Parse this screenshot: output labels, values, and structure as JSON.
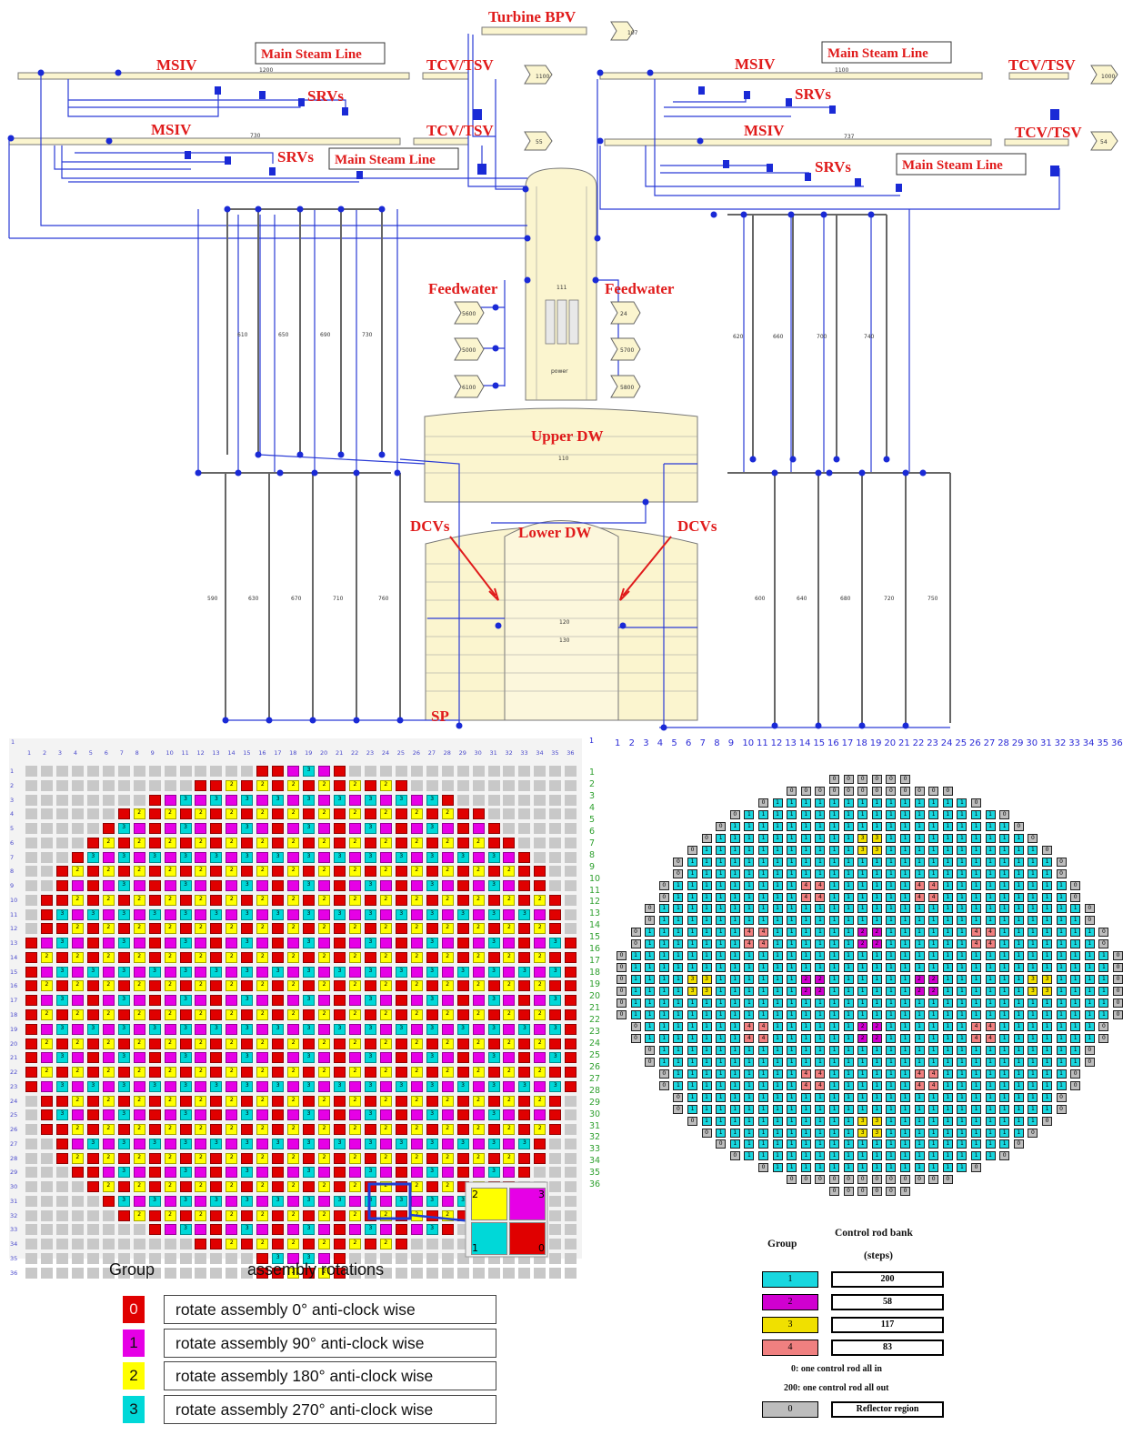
{
  "labels": {
    "turbine_bpv": "Turbine BPV",
    "msiv": "MSIV",
    "main_steam_line": "Main Steam Line",
    "tcv_tsv": "TCV/TSV",
    "srvs": "SRVs",
    "feedwater": "Feedwater",
    "upper_dw": "Upper DW",
    "lower_dw": "Lower DW",
    "dcvs": "DCVs",
    "sp": "SP"
  },
  "component_numbers": {
    "bpv_out": "107",
    "tcv_out_1": "1100",
    "tcv_out_2": "55",
    "tcv_out_3": "1000",
    "tcv_out_4": "54",
    "msl_1": "1200",
    "msl_2": "1100",
    "msl_3": "730",
    "msl_4": "737",
    "vessel": "111",
    "power": "power",
    "upper_dw": "110",
    "lower_dw_1": "120",
    "lower_dw_2": "130",
    "fw_left": [
      "5600",
      "5000",
      "6100"
    ],
    "fw_right": [
      "24",
      "5700",
      "5800"
    ],
    "downcomers_left_upper": [
      "610",
      "650",
      "690",
      "730"
    ],
    "downcomers_right_upper": [
      "620",
      "660",
      "700",
      "740"
    ],
    "downcomers_left_lower": [
      "590",
      "630",
      "670",
      "710",
      "760"
    ],
    "downcomers_right_lower": [
      "600",
      "640",
      "680",
      "720",
      "750"
    ]
  },
  "rotation_map": {
    "size": 36,
    "corner": "1",
    "col_numbers": [
      "1",
      "2",
      "3",
      "4",
      "5",
      "6",
      "7",
      "8",
      "9",
      "10",
      "11",
      "12",
      "13",
      "14",
      "15",
      "16",
      "17",
      "18",
      "19",
      "20",
      "21",
      "22",
      "23",
      "24",
      "25",
      "26",
      "27",
      "28",
      "29",
      "30",
      "31",
      "32",
      "33",
      "34",
      "35",
      "36"
    ],
    "row_numbers": [
      "1",
      "2",
      "3",
      "4",
      "5",
      "6",
      "7",
      "8",
      "9",
      "10",
      "11",
      "12",
      "13",
      "14",
      "15",
      "16",
      "17",
      "18",
      "19",
      "20",
      "21",
      "22",
      "23",
      "24",
      "25",
      "26",
      "27",
      "28",
      "29",
      "30",
      "31",
      "32",
      "33",
      "34",
      "35",
      "36"
    ],
    "inset_numbers": [
      "2",
      "3",
      "1",
      "0"
    ],
    "legend_title_group": "Group",
    "legend_title_rot": "assembly rotations",
    "legend": [
      {
        "group": "0",
        "text": "rotate assembly 0° anti-clock wise",
        "color": "#e00000"
      },
      {
        "group": "1",
        "text": "rotate assembly 90° anti-clock wise",
        "color": "#e600e6"
      },
      {
        "group": "2",
        "text": "rotate assembly 180° anti-clock wise",
        "color": "#ffff00"
      },
      {
        "group": "3",
        "text": "rotate assembly 270° anti-clock wise",
        "color": "#00d8d8"
      }
    ],
    "reflector_color": "#c8c8c8"
  },
  "control_rod_map": {
    "corner": "1",
    "col_numbers": [
      "1",
      "2",
      "3",
      "4",
      "5",
      "6",
      "7",
      "8",
      "9",
      "10",
      "11",
      "12",
      "13",
      "14",
      "15",
      "16",
      "17",
      "18",
      "19",
      "20",
      "21",
      "22",
      "23",
      "24",
      "25",
      "26",
      "27",
      "28",
      "29",
      "30",
      "31",
      "32",
      "33",
      "34",
      "35",
      "36"
    ],
    "row_numbers": [
      "1",
      "2",
      "3",
      "4",
      "5",
      "6",
      "7",
      "8",
      "9",
      "10",
      "11",
      "12",
      "13",
      "14",
      "15",
      "16",
      "17",
      "18",
      "19",
      "20",
      "21",
      "22",
      "23",
      "24",
      "25",
      "26",
      "27",
      "28",
      "29",
      "30",
      "31",
      "32",
      "33",
      "34",
      "35",
      "36"
    ],
    "legend_group": "Group",
    "legend_bank": "Control rod bank",
    "legend_steps": "(steps)",
    "legend": [
      {
        "group": "1",
        "steps": "200",
        "color": "#19d7df"
      },
      {
        "group": "2",
        "steps": "58",
        "color": "#d000d0"
      },
      {
        "group": "3",
        "steps": "117",
        "color": "#f0e000"
      },
      {
        "group": "4",
        "steps": "83",
        "color": "#f08080"
      }
    ],
    "note1": "0: one control rod all in",
    "note2": "200: one control rod all out",
    "reflector_group": "0",
    "reflector_text": "Reflector region",
    "reflector_color": "#bdbdbd"
  }
}
